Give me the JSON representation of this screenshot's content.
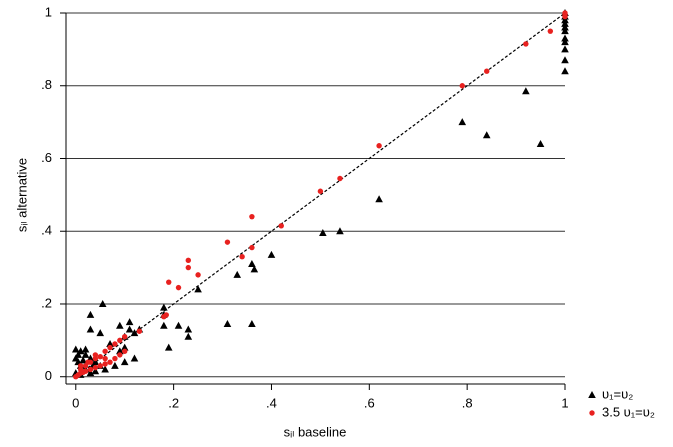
{
  "chart_data": {
    "type": "scatter",
    "x_label": "sᵢₗ baseline",
    "y_label": "sᵢₗ alternative",
    "xlim": [
      -0.02,
      1
    ],
    "ylim": [
      -0.02,
      1
    ],
    "xticks": [
      0,
      {
        "value": 0.2,
        "label": ".2"
      },
      {
        "value": 0.4,
        "label": ".4"
      },
      {
        "value": 0.6,
        "label": ".6"
      },
      {
        "value": 0.8,
        "label": ".8"
      },
      1
    ],
    "yticks": [
      0,
      {
        "value": 0.2,
        "label": ".2"
      },
      {
        "value": 0.4,
        "label": ".4"
      },
      {
        "value": 0.6,
        "label": ".6"
      },
      {
        "value": 0.8,
        "label": ".8"
      },
      1
    ],
    "grid": true,
    "diagonal": true,
    "legend": "lower right",
    "series": [
      {
        "name": "υ₁=υ₂",
        "color": "#000000",
        "marker": "triangle",
        "x": [
          1,
          1,
          1,
          1,
          1,
          1,
          1,
          1,
          1,
          1,
          1,
          0.92,
          0.79,
          0.84,
          0.95,
          0.62,
          0.505,
          0.54,
          0.4,
          0.36,
          0.365,
          0.33,
          0.25,
          0.23,
          0.23,
          0.31,
          0.36,
          0.18,
          0.18,
          0.18,
          0.21,
          0.19,
          0.11,
          0.11,
          0.09,
          0.055,
          0.03,
          0.03,
          0.05,
          0.1,
          0.12,
          0.13,
          0,
          0.01,
          0.02,
          0,
          0.005,
          0.01,
          0.02,
          0.03,
          0.04,
          0.05,
          0.06,
          0.08,
          0.1,
          0.12,
          0.07,
          0.09,
          0.1,
          0,
          0.01,
          0.02,
          0.03,
          0.04,
          0.005,
          0.015,
          0.035
        ],
        "values": [
          1,
          0.99,
          0.98,
          0.97,
          0.96,
          0.95,
          0.93,
          0.92,
          0.9,
          0.87,
          0.84,
          0.785,
          0.7,
          0.664,
          0.64,
          0.488,
          0.395,
          0.4,
          0.335,
          0.31,
          0.295,
          0.28,
          0.24,
          0.13,
          0.11,
          0.145,
          0.145,
          0.19,
          0.17,
          0.14,
          0.14,
          0.08,
          0.15,
          0.13,
          0.14,
          0.2,
          0.17,
          0.13,
          0.12,
          0.11,
          0.12,
          0.13,
          0.075,
          0.07,
          0.075,
          0.05,
          0.04,
          0.03,
          0.06,
          0.05,
          0.04,
          0.03,
          0.02,
          0.03,
          0.04,
          0.05,
          0.09,
          0.07,
          0.08,
          0.01,
          0.005,
          0.02,
          0.01,
          0.015,
          0.06,
          0.045,
          0.03
        ]
      },
      {
        "name": "3.5 υ₁=υ₂",
        "color": "#e8211f",
        "marker": "circle",
        "x": [
          1,
          1,
          1,
          0.97,
          0.92,
          0.84,
          0.79,
          0.62,
          0.54,
          0.5,
          0.42,
          0.36,
          0.36,
          0.31,
          0.34,
          0.23,
          0.23,
          0.25,
          0.19,
          0.21,
          0.18,
          0.185,
          0.13,
          0.1,
          0.09,
          0.08,
          0.07,
          0.06,
          0.05,
          0.04,
          0.03,
          0.02,
          0.01,
          0,
          0.005,
          0.01,
          0.015,
          0.02,
          0.03,
          0.04,
          0.05,
          0.06,
          0.07,
          0.08,
          0.09,
          0.1,
          0.06,
          0.04,
          0.025,
          0.01
        ],
        "values": [
          1,
          0.995,
          0.99,
          0.95,
          0.915,
          0.84,
          0.8,
          0.635,
          0.545,
          0.51,
          0.415,
          0.44,
          0.355,
          0.37,
          0.33,
          0.32,
          0.3,
          0.28,
          0.26,
          0.245,
          0.165,
          0.17,
          0.125,
          0.11,
          0.1,
          0.09,
          0.08,
          0.07,
          0.055,
          0.05,
          0.04,
          0.03,
          0.02,
          0,
          0.005,
          0.01,
          0.012,
          0.015,
          0.02,
          0.025,
          0.03,
          0.035,
          0.04,
          0.05,
          0.06,
          0.07,
          0.05,
          0.06,
          0.04,
          0.03
        ]
      }
    ]
  }
}
